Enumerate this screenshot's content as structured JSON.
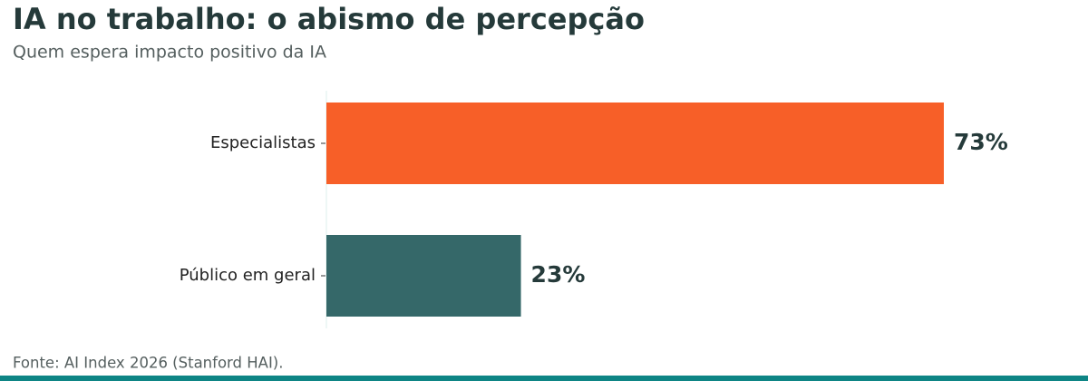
{
  "chart_data": {
    "type": "hbar",
    "title": "IA no trabalho: o abismo de percepção",
    "subtitle": "Quem espera impacto positivo da IA",
    "categories": [
      "Especialistas",
      "Público em geral"
    ],
    "values": [
      73,
      23
    ],
    "value_labels": [
      "73%",
      "23%"
    ],
    "colors": [
      "#f75f28",
      "#356869"
    ],
    "source": "Fonte: AI Index 2026 (Stanford HAI)."
  }
}
